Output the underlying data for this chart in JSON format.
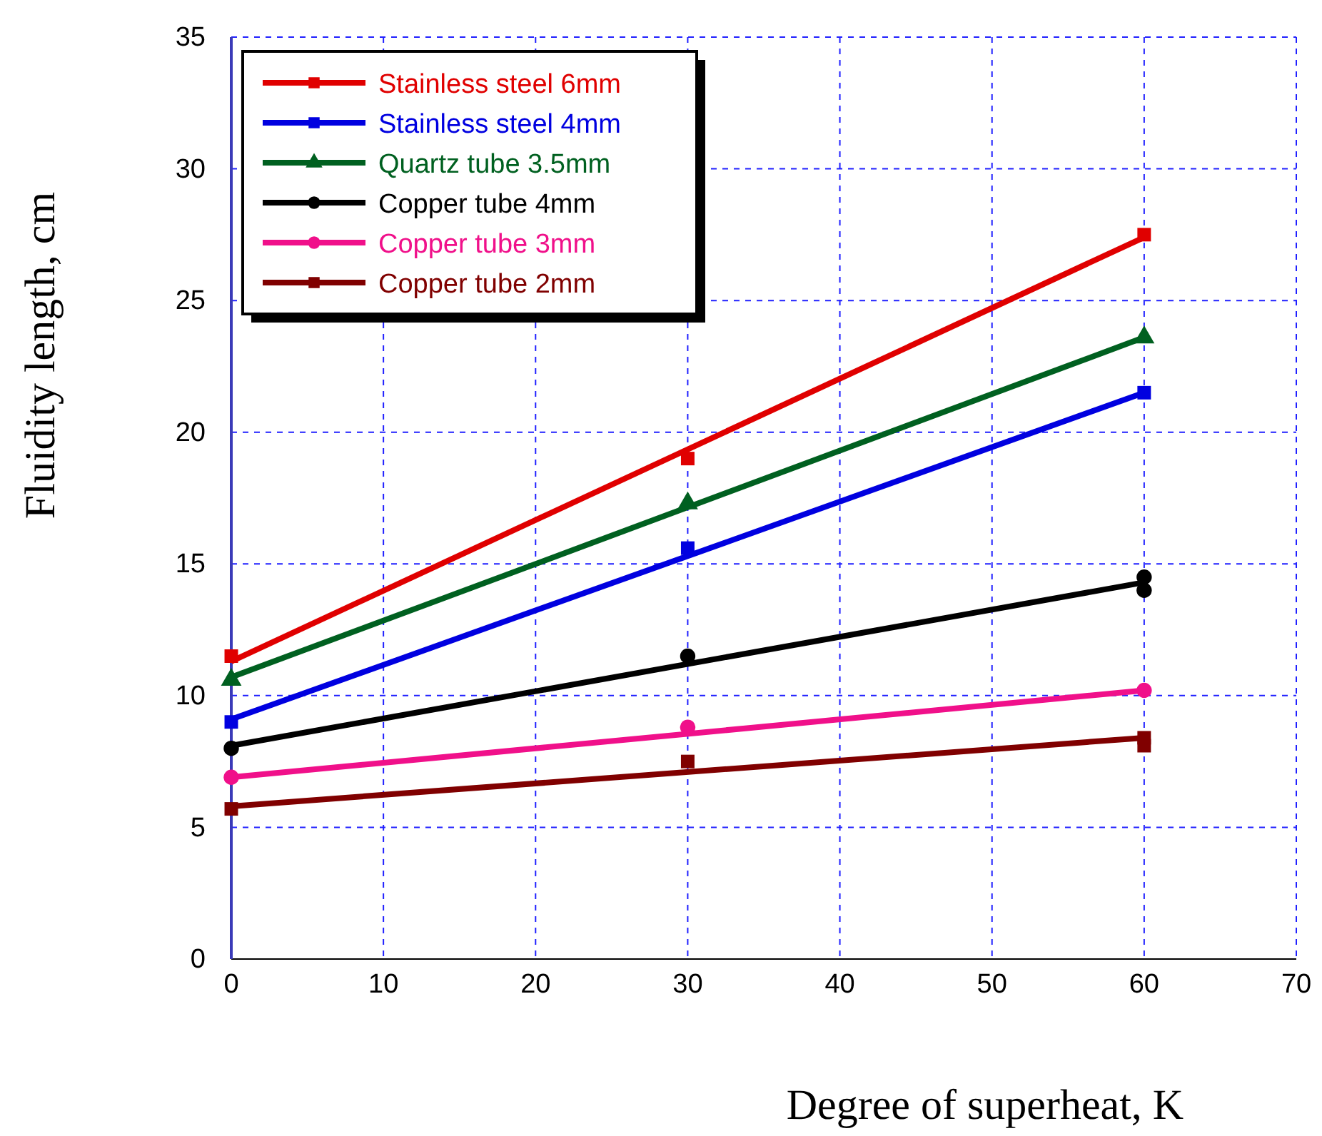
{
  "chart_data": {
    "type": "scatter",
    "xlabel": "Degree of superheat, K",
    "ylabel": "Fluidity length, cm",
    "xlim": [
      0,
      70
    ],
    "xticks": [
      0,
      10,
      20,
      30,
      40,
      50,
      60,
      70
    ],
    "ylim": [
      0,
      35
    ],
    "yticks": [
      0,
      5,
      10,
      15,
      20,
      25,
      30,
      35
    ],
    "grid": true,
    "legend": "top left",
    "series": [
      {
        "name": "Stainless steel 6mm",
        "color": "#e00000",
        "marker": "square",
        "x": [
          0,
          30,
          60
        ],
        "values": [
          11.5,
          19.0,
          27.5
        ]
      },
      {
        "name": "Stainless steel 4mm",
        "color": "#0000e0",
        "marker": "square",
        "x": [
          0,
          30,
          60
        ],
        "values": [
          9.0,
          15.6,
          21.5
        ]
      },
      {
        "name": "Quartz tube 3.5mm",
        "color": "#006020",
        "marker": "triangle",
        "x": [
          0,
          30,
          60
        ],
        "values": [
          10.6,
          17.3,
          23.6
        ]
      },
      {
        "name": "Copper tube 4mm",
        "color": "#000000",
        "marker": "circle",
        "x": [
          0,
          30,
          60,
          60
        ],
        "values": [
          8.0,
          11.5,
          14.5,
          14.0
        ]
      },
      {
        "name": "Copper tube 3mm",
        "color": "#f0108a",
        "marker": "circle",
        "x": [
          0,
          30,
          60
        ],
        "values": [
          6.9,
          8.8,
          10.2
        ]
      },
      {
        "name": "Copper tube 2mm",
        "color": "#800000",
        "marker": "square",
        "x": [
          0,
          30,
          60,
          60
        ],
        "values": [
          5.7,
          7.5,
          8.4,
          8.1
        ]
      },
      {
        "type": "line",
        "color": "#e00000",
        "x": [
          0,
          60
        ],
        "values": [
          11.3,
          27.4
        ]
      },
      {
        "type": "line",
        "color": "#0000e0",
        "x": [
          0,
          60
        ],
        "values": [
          9.1,
          21.5
        ]
      },
      {
        "type": "line",
        "color": "#006020",
        "x": [
          0,
          60
        ],
        "values": [
          10.7,
          23.6
        ]
      },
      {
        "type": "line",
        "color": "#000000",
        "x": [
          0,
          60
        ],
        "values": [
          8.1,
          14.3
        ]
      },
      {
        "type": "line",
        "color": "#f0108a",
        "x": [
          0,
          60
        ],
        "values": [
          6.9,
          10.2
        ]
      },
      {
        "type": "line",
        "color": "#800000",
        "x": [
          0,
          60
        ],
        "values": [
          5.8,
          8.4
        ]
      }
    ]
  }
}
